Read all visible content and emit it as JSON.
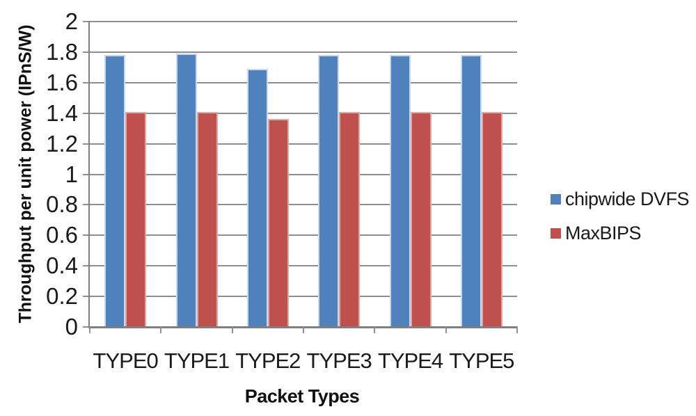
{
  "chart_data": {
    "type": "bar",
    "title": "",
    "xlabel": "Packet Types",
    "ylabel": "Throughput per unit power (IPnS/W)",
    "categories": [
      "TYPE0",
      "TYPE1",
      "TYPE2",
      "TYPE3",
      "TYPE4",
      "TYPE5"
    ],
    "series": [
      {
        "name": "chipwide DVFS",
        "color": "#4F81BD",
        "edge_color": "#CBD8EB",
        "values": [
          1.78,
          1.79,
          1.69,
          1.78,
          1.78,
          1.78
        ]
      },
      {
        "name": "MaxBIPS",
        "color": "#C0504D",
        "edge_color": "#DDA9A5",
        "values": [
          1.41,
          1.41,
          1.36,
          1.41,
          1.41,
          1.41
        ]
      }
    ],
    "ylim": [
      0,
      2
    ],
    "ytick_step": 0.2,
    "ytick_labels": [
      "2",
      "1.8",
      "1.6",
      "1.4",
      "1.2",
      "1",
      "0.8",
      "0.6",
      "0.4",
      "0.2",
      "0"
    ],
    "grid": true,
    "legend_position": "right",
    "styles": {
      "gridline_color": "#8F8F8F",
      "axis_color": "#7F7F7F",
      "text_color": "#1A1A1A",
      "background": "#FFFFFF"
    }
  }
}
